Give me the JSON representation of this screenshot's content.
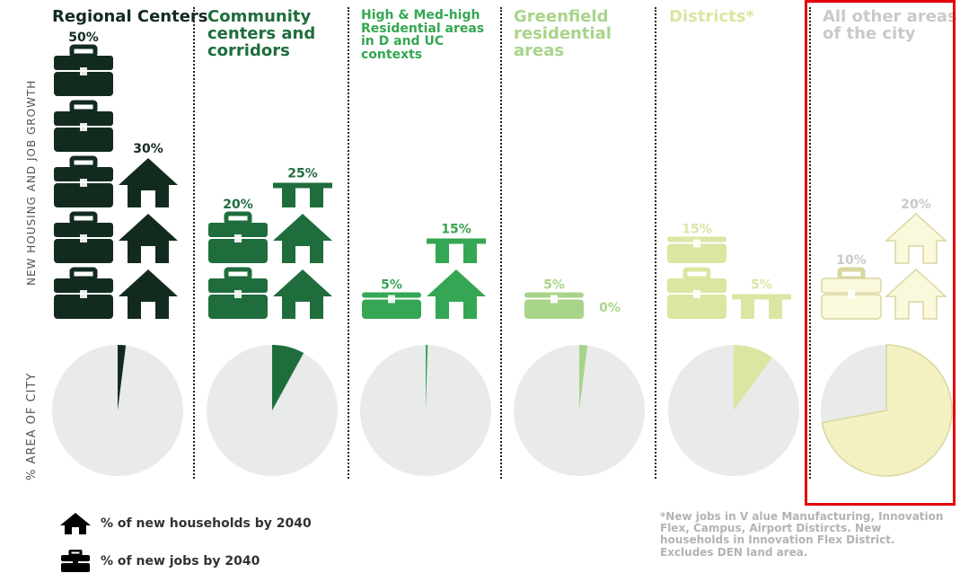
{
  "side_labels": {
    "growth": "NEW HOUSING AND JOB GROWTH",
    "area": "% AREA OF CITY"
  },
  "legend": {
    "households": "% of new households by 2040",
    "jobs": "% of new jobs by 2040"
  },
  "footnote": "*New jobs in V alue Manufacturing, Innovation Flex, Campus, Airport Distircts. New households in Innovation Flex District. Excludes DEN land area.",
  "chart_data": {
    "type": "bar",
    "title": "",
    "categories": [
      "Regional Centers",
      "Community centers and corridors",
      "High & Med-high Residential areas in D and UC contexts",
      "Greenfield residential areas",
      "Districts*",
      "All other areas of the city"
    ],
    "series": [
      {
        "name": "% of new jobs by 2040",
        "values": [
          50,
          20,
          5,
          5,
          15,
          10
        ]
      },
      {
        "name": "% of new households by 2040",
        "values": [
          30,
          25,
          15,
          0,
          5,
          20
        ]
      },
      {
        "name": "% AREA OF CITY",
        "values": [
          2,
          8,
          0.5,
          2,
          10,
          72
        ]
      }
    ],
    "labels": {
      "jobs": [
        "50%",
        "20%",
        "5%",
        "5%",
        "15%",
        "10%"
      ],
      "households": [
        "30%",
        "25%",
        "15%",
        "0%",
        "5%",
        "20%"
      ]
    },
    "unit": "%",
    "colors": [
      "#132b1f",
      "#1f6d3d",
      "#35a653",
      "#a8d48a",
      "#dbe6a2",
      "#f3f1c2"
    ],
    "highlighted_category": "All other areas of the city",
    "highlight_color": "#e3000b"
  }
}
